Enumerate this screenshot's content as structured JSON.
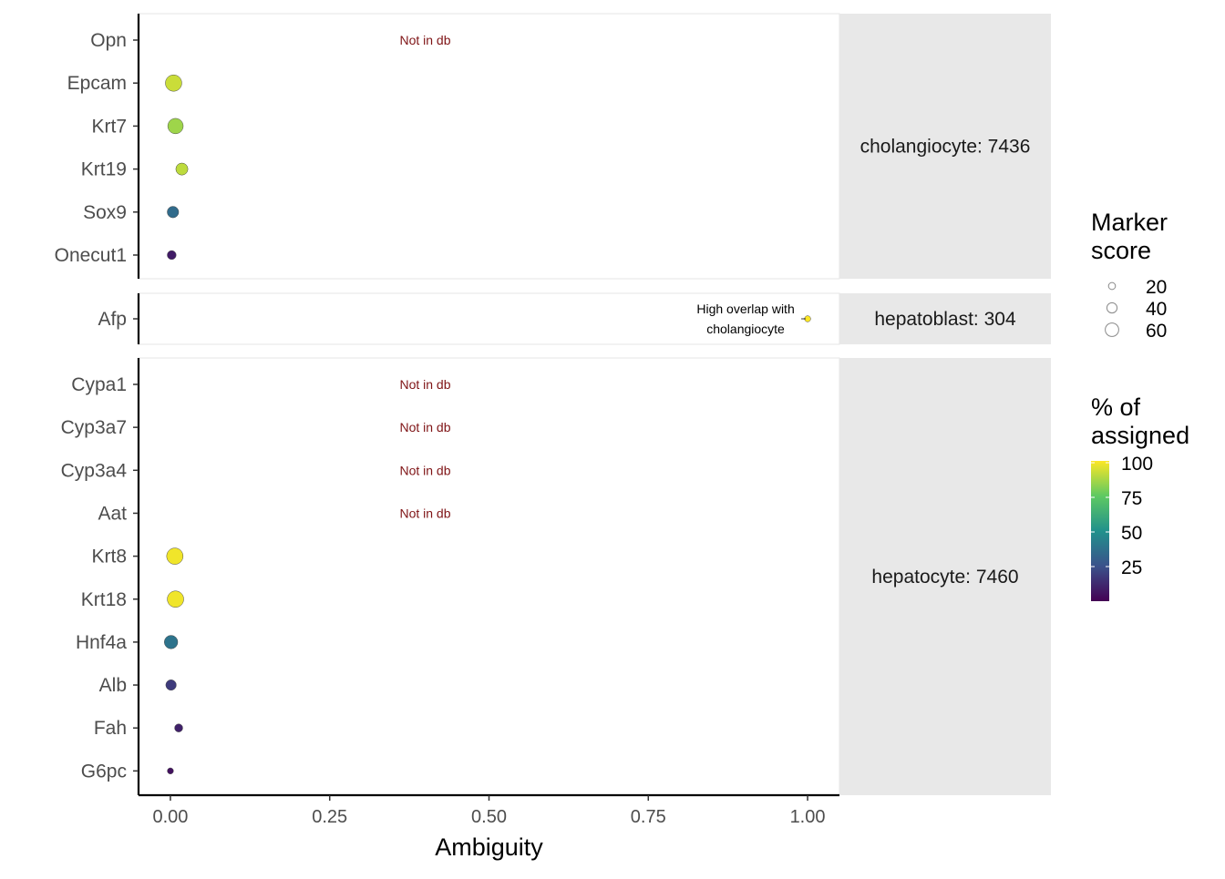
{
  "chart_data": {
    "type": "scatter",
    "title": "",
    "xlabel": "Ambiguity",
    "ylabel": "",
    "xlim": [
      -0.05,
      1.05
    ],
    "x_ticks": [
      "0.00",
      "0.25",
      "0.50",
      "0.75",
      "1.00"
    ],
    "x_tick_values": [
      0,
      0.25,
      0.5,
      0.75,
      1.0
    ],
    "grid": false,
    "facets": [
      {
        "label": "cholangiocyte: 7436",
        "genes": [
          {
            "gene": "Opn",
            "ambiguity": null,
            "pct_assigned": null,
            "marker_score": null,
            "note": "Not in db"
          },
          {
            "gene": "Epcam",
            "ambiguity": 0.005,
            "pct_assigned": 92,
            "marker_score": 60,
            "note": ""
          },
          {
            "gene": "Krt7",
            "ambiguity": 0.008,
            "pct_assigned": 85,
            "marker_score": 55,
            "note": ""
          },
          {
            "gene": "Krt19",
            "ambiguity": 0.018,
            "pct_assigned": 90,
            "marker_score": 38,
            "note": ""
          },
          {
            "gene": "Sox9",
            "ambiguity": 0.004,
            "pct_assigned": 35,
            "marker_score": 35,
            "note": ""
          },
          {
            "gene": "Onecut1",
            "ambiguity": 0.002,
            "pct_assigned": 8,
            "marker_score": 22,
            "note": ""
          }
        ]
      },
      {
        "label": "hepatoblast: 304",
        "genes": [
          {
            "gene": "Afp",
            "ambiguity": 1.0,
            "pct_assigned": 100,
            "marker_score": 8,
            "note": "High overlap with\ncholangiocyte"
          }
        ]
      },
      {
        "label": "hepatocyte: 7460",
        "genes": [
          {
            "gene": "Cypa1",
            "ambiguity": null,
            "pct_assigned": null,
            "marker_score": null,
            "note": "Not in db"
          },
          {
            "gene": "Cyp3a7",
            "ambiguity": null,
            "pct_assigned": null,
            "marker_score": null,
            "note": "Not in db"
          },
          {
            "gene": "Cyp3a4",
            "ambiguity": null,
            "pct_assigned": null,
            "marker_score": null,
            "note": "Not in db"
          },
          {
            "gene": "Aat",
            "ambiguity": null,
            "pct_assigned": null,
            "marker_score": null,
            "note": "Not in db"
          },
          {
            "gene": "Krt8",
            "ambiguity": 0.007,
            "pct_assigned": 98,
            "marker_score": 60,
            "note": ""
          },
          {
            "gene": "Krt18",
            "ambiguity": 0.008,
            "pct_assigned": 98,
            "marker_score": 60,
            "note": ""
          },
          {
            "gene": "Hnf4a",
            "ambiguity": 0.001,
            "pct_assigned": 38,
            "marker_score": 45,
            "note": ""
          },
          {
            "gene": "Alb",
            "ambiguity": 0.001,
            "pct_assigned": 18,
            "marker_score": 30,
            "note": ""
          },
          {
            "gene": "Fah",
            "ambiguity": 0.013,
            "pct_assigned": 10,
            "marker_score": 18,
            "note": ""
          },
          {
            "gene": "G6pc",
            "ambiguity": 0.0,
            "pct_assigned": 5,
            "marker_score": 8,
            "note": ""
          }
        ]
      }
    ],
    "size_legend": {
      "title": "Marker\nscore",
      "values": [
        20,
        40,
        60
      ],
      "labels": [
        "20",
        "40",
        "60"
      ]
    },
    "color_legend": {
      "title": "% of\nassigned",
      "ticks": [
        25,
        50,
        75,
        100
      ],
      "tick_labels": [
        "25",
        "50",
        "75",
        "100"
      ],
      "range": [
        0,
        100
      ],
      "palette": [
        "#440154",
        "#3b528b",
        "#21918c",
        "#5ec962",
        "#fde725"
      ]
    },
    "colors": {
      "strip_background": "#e8e8e8",
      "panel_border": "#e6e6e6",
      "note_text": "#7f1416"
    }
  }
}
